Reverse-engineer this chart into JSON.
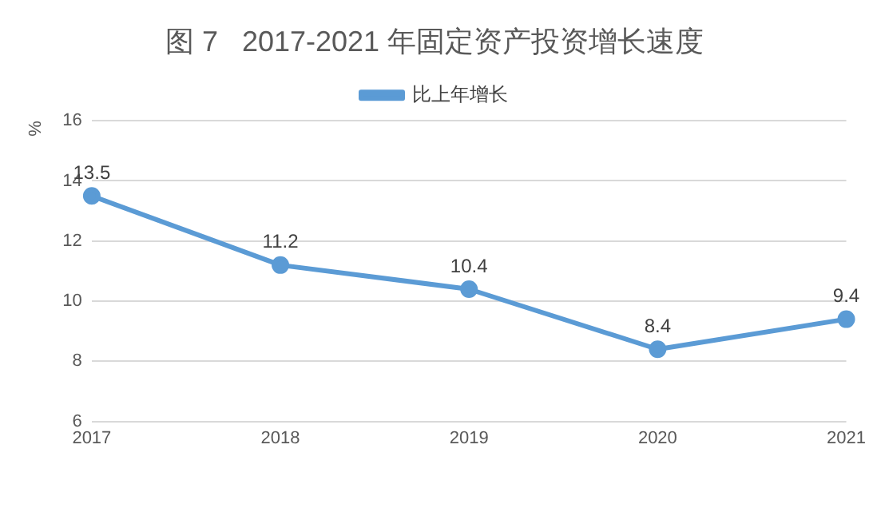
{
  "chart_data": {
    "type": "line",
    "title": "图 7   2017-2021 年固定资产投资增长速度",
    "ylabel": "%",
    "categories": [
      "2017",
      "2018",
      "2019",
      "2020",
      "2021"
    ],
    "series": [
      {
        "name": "比上年增长",
        "color": "#5b9bd5",
        "values": [
          13.5,
          11.2,
          10.4,
          8.4,
          9.4
        ]
      }
    ],
    "ylim": [
      6,
      16
    ],
    "yticks": [
      6,
      8,
      10,
      12,
      14,
      16
    ],
    "grid": "y",
    "legend": "top",
    "marker": "circle",
    "line_style": "solid",
    "data_labels": true
  }
}
